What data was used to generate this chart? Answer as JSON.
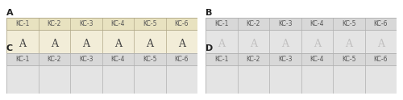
{
  "panels": [
    "A",
    "B",
    "C",
    "D"
  ],
  "labels": [
    "KC-1",
    "KC-2",
    "KC-3",
    "KC-4",
    "KC-5",
    "KC-6"
  ],
  "panel_bg_A": "#f2edd8",
  "panel_bg_B": "#e4e4e4",
  "panel_bg_C": "#e4e4e4",
  "panel_bg_D": "#e4e4e4",
  "header_bg_A": "#e8e2c0",
  "header_bg_B": "#d8d8d8",
  "header_bg_C": "#d8d8d8",
  "header_bg_D": "#d8d8d8",
  "border_color": "#b0a888",
  "border_color_BCD": "#b0b0b0",
  "letter_color_A": "#404040",
  "letter_color_B": "#c0bfbf",
  "letter_color_C": "#c8c8c8",
  "letter_color_D": "#cccccc",
  "panel_label_color": "#222222",
  "panel_label_fontsize": 8,
  "label_fontsize": 5.5,
  "letter_fontsize": 9,
  "show_letters_A": true,
  "show_letters_B": true,
  "show_letters_C": false,
  "show_letters_D": false,
  "fig_width": 5.0,
  "fig_height": 1.24,
  "n_cols": 6
}
